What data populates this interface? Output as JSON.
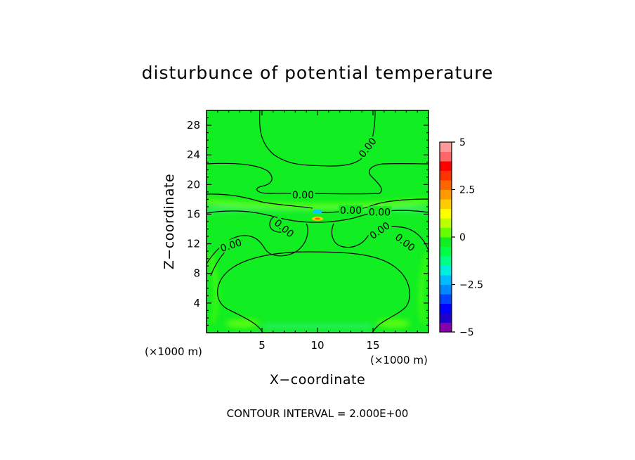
{
  "chart_data": {
    "type": "heatmap",
    "title": "disturbunce of potential temperature",
    "xlabel": "X−coordinate",
    "ylabel": "Z−coordinate",
    "x_unit": "(×1000 m)",
    "y_unit": "(×1000 m)",
    "xlim": [
      0,
      20
    ],
    "ylim": [
      0,
      30
    ],
    "x_ticks": [
      5,
      10,
      15
    ],
    "y_ticks": [
      4,
      8,
      12,
      16,
      20,
      24,
      28
    ],
    "footer": "CONTOUR INTERVAL = 2.000E+00",
    "contour_interval": 2.0,
    "background_value": 0.2,
    "colorbar": {
      "min": -5,
      "max": 5,
      "tick_values": [
        5,
        2.5,
        0,
        -2.5,
        -5
      ],
      "tick_labels": [
        "5",
        "2.5",
        "0",
        "−2.5",
        "−5"
      ],
      "colors": [
        "#8800aa",
        "#2200cc",
        "#0000ff",
        "#0044ff",
        "#0088ff",
        "#00bbff",
        "#00eedd",
        "#00ff88",
        "#00ff44",
        "#11ee22",
        "#66ff00",
        "#bbff00",
        "#ffff00",
        "#ffcc00",
        "#ff9900",
        "#ff6600",
        "#ff3300",
        "#ff0000",
        "#ff6666",
        "#ff9999"
      ]
    },
    "contour_labels": [
      {
        "text": "0.00",
        "x": 14.5,
        "z": 25.0,
        "rotate": -52
      },
      {
        "text": "0.00",
        "x": 8.7,
        "z": 18.6,
        "rotate": 0
      },
      {
        "text": "0.00",
        "x": 13.0,
        "z": 16.5,
        "rotate": 0
      },
      {
        "text": "0.00",
        "x": 15.6,
        "z": 16.3,
        "rotate": 0
      },
      {
        "text": "0.00",
        "x": 7.0,
        "z": 14.1,
        "rotate": 40
      },
      {
        "text": "0.00",
        "x": 2.2,
        "z": 11.8,
        "rotate": -18
      },
      {
        "text": "0.00",
        "x": 15.6,
        "z": 13.8,
        "rotate": -35
      },
      {
        "text": "0.00",
        "x": 17.9,
        "z": 12.2,
        "rotate": 38
      }
    ]
  }
}
